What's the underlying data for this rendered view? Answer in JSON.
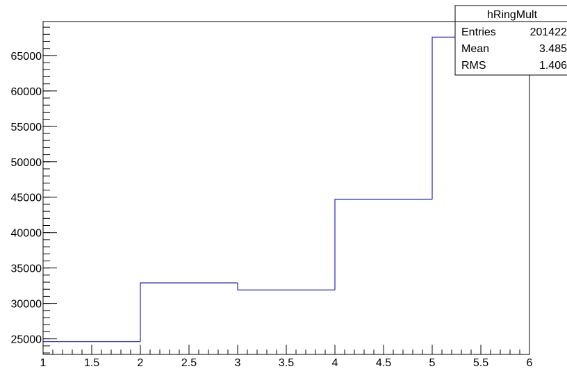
{
  "chart_data": {
    "type": "histogram",
    "title": "",
    "xlabel": "",
    "ylabel": "",
    "xlim": [
      1,
      6
    ],
    "ylim": [
      22800,
      69800
    ],
    "bins": [
      {
        "x_low": 1,
        "x_high": 2,
        "value": 24600
      },
      {
        "x_low": 2,
        "x_high": 3,
        "value": 32900
      },
      {
        "x_low": 3,
        "x_high": 4,
        "value": 31900
      },
      {
        "x_low": 4,
        "x_high": 5,
        "value": 44700
      },
      {
        "x_low": 5,
        "x_high": 6,
        "value": 67600
      }
    ],
    "x_ticks": [
      1,
      1.5,
      2,
      2.5,
      3,
      3.5,
      4,
      4.5,
      5,
      5.5,
      6
    ],
    "x_tick_labels": [
      "1",
      "1.5",
      "2",
      "2.5",
      "3",
      "3.5",
      "4",
      "4.5",
      "5",
      "5.5",
      "6"
    ],
    "y_ticks": [
      25000,
      30000,
      35000,
      40000,
      45000,
      50000,
      55000,
      60000,
      65000
    ],
    "y_tick_labels": [
      "25000",
      "30000",
      "35000",
      "40000",
      "45000",
      "50000",
      "55000",
      "60000",
      "65000"
    ],
    "x_minor_step": 0.1,
    "y_minor_step": 1000,
    "grid": false,
    "line_color": "#3333cc",
    "stats_box": {
      "name": "hRingMult",
      "placement": "top-right",
      "rows": [
        {
          "label": "Entries",
          "value": "201422"
        },
        {
          "label": "Mean",
          "value": "3.485"
        },
        {
          "label": "RMS",
          "value": "1.406"
        }
      ]
    }
  }
}
